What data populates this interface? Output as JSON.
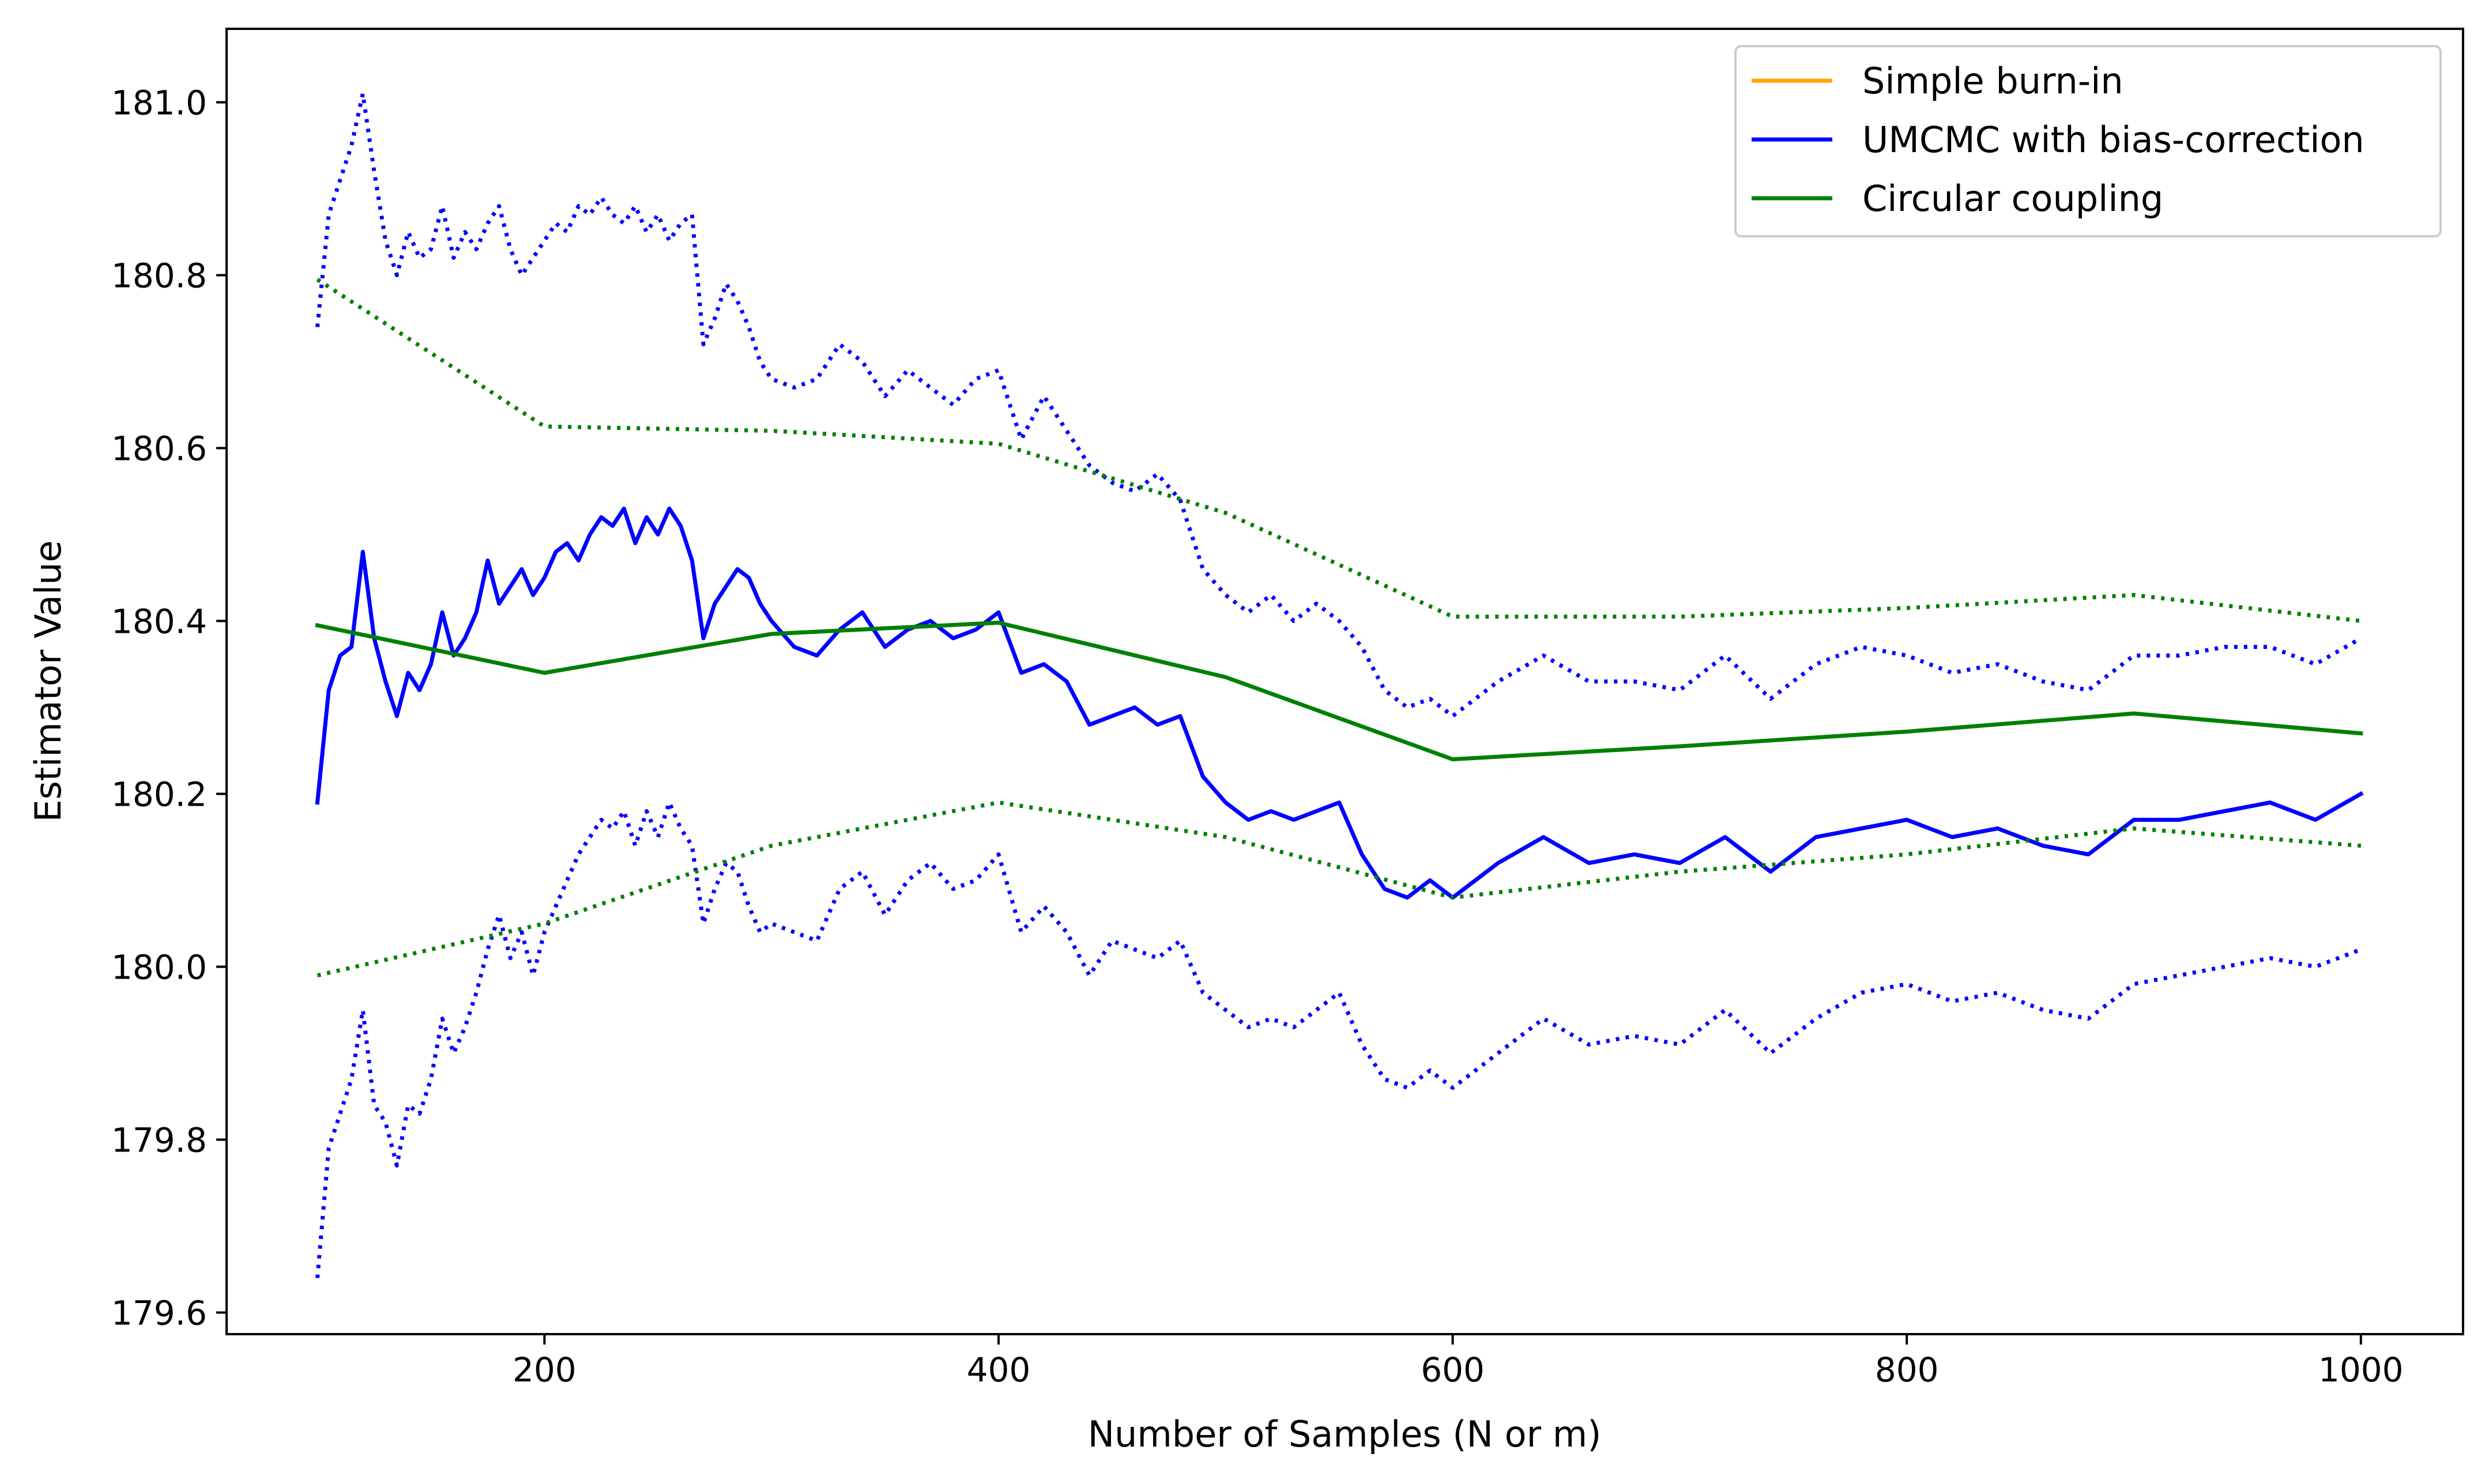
{
  "chart_data": {
    "type": "line",
    "title": "",
    "xlabel": "Number of Samples (N or m)",
    "ylabel": "Estimator Value",
    "xlim": [
      60,
      1045
    ],
    "ylim": [
      179.575,
      181.085
    ],
    "xticks": [
      200,
      400,
      600,
      800,
      1000
    ],
    "yticks": [
      179.6,
      179.8,
      180.0,
      180.2,
      180.4,
      180.6,
      180.8,
      181.0
    ],
    "xtick_labels": [
      "200",
      "400",
      "600",
      "800",
      "1000"
    ],
    "ytick_labels": [
      "179.6",
      "179.8",
      "180.0",
      "180.2",
      "180.4",
      "180.6",
      "180.8",
      "181.0"
    ],
    "grid": false,
    "legend_position": "top-right",
    "legend": [
      {
        "label": "Simple burn-in",
        "color": "#ffa500"
      },
      {
        "label": "UMCMC with bias-correction",
        "color": "#0000ff"
      },
      {
        "label": "Circular coupling",
        "color": "#008000"
      }
    ],
    "series": [
      {
        "name": "UMCMC with bias-correction",
        "color": "#0000ff",
        "style": "solid",
        "x": [
          100,
          105,
          110,
          115,
          120,
          125,
          130,
          135,
          140,
          145,
          150,
          155,
          160,
          165,
          170,
          175,
          180,
          185,
          190,
          195,
          200,
          205,
          210,
          215,
          220,
          225,
          230,
          235,
          240,
          245,
          250,
          255,
          260,
          265,
          270,
          275,
          280,
          285,
          290,
          295,
          300,
          310,
          320,
          330,
          340,
          350,
          360,
          370,
          380,
          390,
          400,
          410,
          420,
          430,
          440,
          450,
          460,
          470,
          480,
          490,
          500,
          510,
          520,
          530,
          540,
          550,
          560,
          570,
          580,
          590,
          600,
          620,
          640,
          660,
          680,
          700,
          720,
          740,
          760,
          780,
          800,
          820,
          840,
          860,
          880,
          900,
          920,
          940,
          960,
          980,
          1000
        ],
        "y": [
          180.19,
          180.32,
          180.36,
          180.37,
          180.48,
          180.38,
          180.33,
          180.29,
          180.34,
          180.32,
          180.35,
          180.41,
          180.36,
          180.38,
          180.41,
          180.47,
          180.42,
          180.44,
          180.46,
          180.43,
          180.45,
          180.48,
          180.49,
          180.47,
          180.5,
          180.52,
          180.51,
          180.53,
          180.49,
          180.52,
          180.5,
          180.53,
          180.51,
          180.47,
          180.38,
          180.42,
          180.44,
          180.46,
          180.45,
          180.42,
          180.4,
          180.37,
          180.36,
          180.39,
          180.41,
          180.37,
          180.39,
          180.4,
          180.38,
          180.39,
          180.41,
          180.34,
          180.35,
          180.33,
          180.28,
          180.29,
          180.3,
          180.28,
          180.29,
          180.22,
          180.19,
          180.17,
          180.18,
          180.17,
          180.18,
          180.19,
          180.13,
          180.09,
          180.08,
          180.1,
          180.08,
          180.12,
          180.15,
          180.12,
          180.13,
          180.12,
          180.15,
          180.11,
          180.15,
          180.16,
          180.17,
          180.15,
          180.16,
          180.14,
          180.13,
          180.17,
          180.17,
          180.18,
          180.19,
          180.17,
          180.2
        ]
      },
      {
        "name": "",
        "color": "#0000ff",
        "style": "dotted",
        "x": [
          100,
          105,
          110,
          115,
          120,
          125,
          130,
          135,
          140,
          145,
          150,
          155,
          160,
          165,
          170,
          175,
          180,
          185,
          190,
          195,
          200,
          205,
          210,
          215,
          220,
          225,
          230,
          235,
          240,
          245,
          250,
          255,
          260,
          265,
          270,
          275,
          280,
          285,
          290,
          295,
          300,
          310,
          320,
          330,
          340,
          350,
          360,
          370,
          380,
          390,
          400,
          410,
          420,
          430,
          440,
          450,
          460,
          470,
          480,
          490,
          500,
          510,
          520,
          530,
          540,
          550,
          560,
          570,
          580,
          590,
          600,
          620,
          640,
          660,
          680,
          700,
          720,
          740,
          760,
          780,
          800,
          820,
          840,
          860,
          880,
          900,
          920,
          940,
          960,
          980,
          1000
        ],
        "y": [
          180.74,
          180.87,
          180.91,
          180.95,
          181.01,
          180.92,
          180.84,
          180.8,
          180.85,
          180.82,
          180.83,
          180.88,
          180.82,
          180.85,
          180.83,
          180.86,
          180.88,
          180.83,
          180.8,
          180.82,
          180.84,
          180.86,
          180.85,
          180.88,
          180.87,
          180.89,
          180.87,
          180.86,
          180.88,
          180.85,
          180.87,
          180.84,
          180.86,
          180.87,
          180.72,
          180.75,
          180.79,
          180.77,
          180.74,
          180.7,
          180.68,
          180.67,
          180.68,
          180.72,
          180.7,
          180.66,
          180.69,
          180.67,
          180.65,
          180.68,
          180.69,
          180.61,
          180.66,
          180.62,
          180.58,
          180.56,
          180.55,
          180.57,
          180.54,
          180.46,
          180.43,
          180.41,
          180.43,
          180.4,
          180.42,
          180.4,
          180.37,
          180.32,
          180.3,
          180.31,
          180.29,
          180.33,
          180.36,
          180.33,
          180.33,
          180.32,
          180.36,
          180.31,
          180.35,
          180.37,
          180.36,
          180.34,
          180.35,
          180.33,
          180.32,
          180.36,
          180.36,
          180.37,
          180.37,
          180.35,
          180.38
        ]
      },
      {
        "name": "",
        "color": "#0000ff",
        "style": "dotted",
        "x": [
          100,
          105,
          110,
          115,
          120,
          125,
          130,
          135,
          140,
          145,
          150,
          155,
          160,
          165,
          170,
          175,
          180,
          185,
          190,
          195,
          200,
          205,
          210,
          215,
          220,
          225,
          230,
          235,
          240,
          245,
          250,
          255,
          260,
          265,
          270,
          275,
          280,
          285,
          290,
          295,
          300,
          310,
          320,
          330,
          340,
          350,
          360,
          370,
          380,
          390,
          400,
          410,
          420,
          430,
          440,
          450,
          460,
          470,
          480,
          490,
          500,
          510,
          520,
          530,
          540,
          550,
          560,
          570,
          580,
          590,
          600,
          620,
          640,
          660,
          680,
          700,
          720,
          740,
          760,
          780,
          800,
          820,
          840,
          860,
          880,
          900,
          920,
          940,
          960,
          980,
          1000
        ],
        "y": [
          179.64,
          179.79,
          179.83,
          179.87,
          179.95,
          179.84,
          179.82,
          179.77,
          179.84,
          179.83,
          179.87,
          179.94,
          179.9,
          179.93,
          179.97,
          180.02,
          180.06,
          180.01,
          180.04,
          179.99,
          180.04,
          180.07,
          180.1,
          180.13,
          180.15,
          180.17,
          180.16,
          180.18,
          180.14,
          180.18,
          180.15,
          180.19,
          180.16,
          180.14,
          180.05,
          180.09,
          180.12,
          180.11,
          180.07,
          180.04,
          180.05,
          180.04,
          180.03,
          180.09,
          180.11,
          180.06,
          180.1,
          180.12,
          180.09,
          180.1,
          180.13,
          180.04,
          180.07,
          180.04,
          179.99,
          180.03,
          180.02,
          180.01,
          180.03,
          179.97,
          179.95,
          179.93,
          179.94,
          179.93,
          179.95,
          179.97,
          179.91,
          179.87,
          179.86,
          179.88,
          179.86,
          179.9,
          179.94,
          179.91,
          179.92,
          179.91,
          179.95,
          179.9,
          179.94,
          179.97,
          179.98,
          179.96,
          179.97,
          179.95,
          179.94,
          179.98,
          179.99,
          180.0,
          180.01,
          180.0,
          180.02
        ]
      },
      {
        "name": "Circular coupling",
        "color": "#008000",
        "style": "solid",
        "x": [
          100,
          200,
          300,
          400,
          500,
          600,
          700,
          800,
          900,
          1000
        ],
        "y": [
          180.395,
          180.34,
          180.385,
          180.398,
          180.335,
          180.24,
          180.255,
          180.272,
          180.293,
          180.27
        ]
      },
      {
        "name": "",
        "color": "#008000",
        "style": "dotted",
        "x": [
          100,
          200,
          300,
          400,
          500,
          600,
          700,
          800,
          900,
          1000
        ],
        "y": [
          180.795,
          180.625,
          180.62,
          180.605,
          180.525,
          180.405,
          180.405,
          180.415,
          180.43,
          180.4
        ]
      },
      {
        "name": "",
        "color": "#008000",
        "style": "dotted",
        "x": [
          100,
          200,
          300,
          400,
          500,
          600,
          700,
          800,
          900,
          1000
        ],
        "y": [
          179.99,
          180.05,
          180.14,
          180.19,
          180.15,
          180.08,
          180.11,
          180.13,
          180.16,
          180.14
        ]
      }
    ]
  }
}
